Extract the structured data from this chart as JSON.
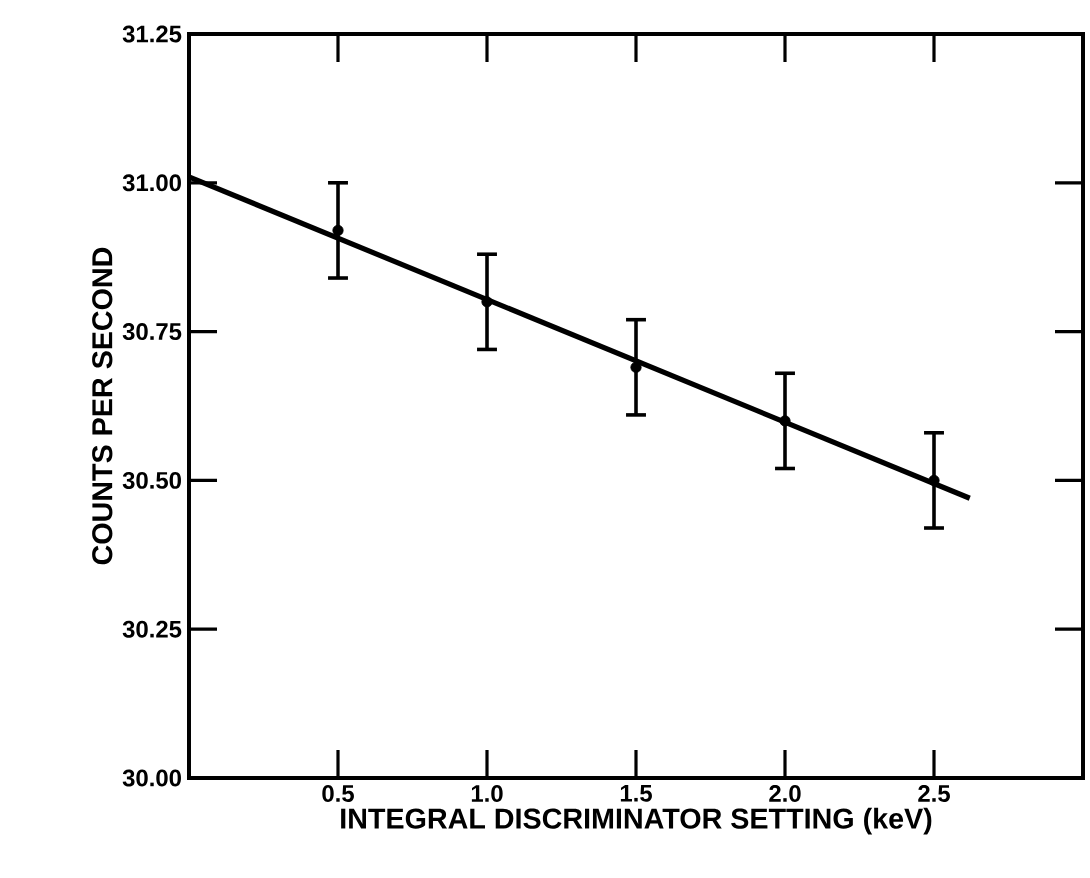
{
  "chart_data": {
    "type": "scatter",
    "xlabel": "INTEGRAL DISCRIMINATOR SETTING (keV)",
    "ylabel": "COUNTS PER SECOND",
    "xlim": [
      0,
      3
    ],
    "ylim": [
      30.0,
      31.25
    ],
    "xticks": [
      0.5,
      {
        "value": 1.0,
        "label": "1.0"
      },
      1.5,
      {
        "value": 2.0,
        "label": "2.0"
      },
      2.5
    ],
    "yticks": [
      {
        "value": 30.0,
        "label": "30.00"
      },
      30.25,
      {
        "value": 30.5,
        "label": "30.50"
      },
      30.75,
      {
        "value": 31.0,
        "label": "31.00"
      },
      31.25
    ],
    "grid": false,
    "series": [
      {
        "color": "#000000",
        "marker": "circle",
        "x": [
          0.5,
          1.0,
          1.5,
          2.0,
          2.5
        ],
        "values": [
          30.92,
          30.8,
          30.69,
          30.6,
          30.5
        ],
        "errors": [
          0.08,
          0.08,
          0.08,
          0.08,
          0.08
        ]
      },
      {
        "type": "line",
        "color": "#000000",
        "line_style": "solid",
        "marker": "none",
        "x": [
          0,
          2.62
        ],
        "values": [
          31.01,
          30.47
        ]
      }
    ]
  }
}
